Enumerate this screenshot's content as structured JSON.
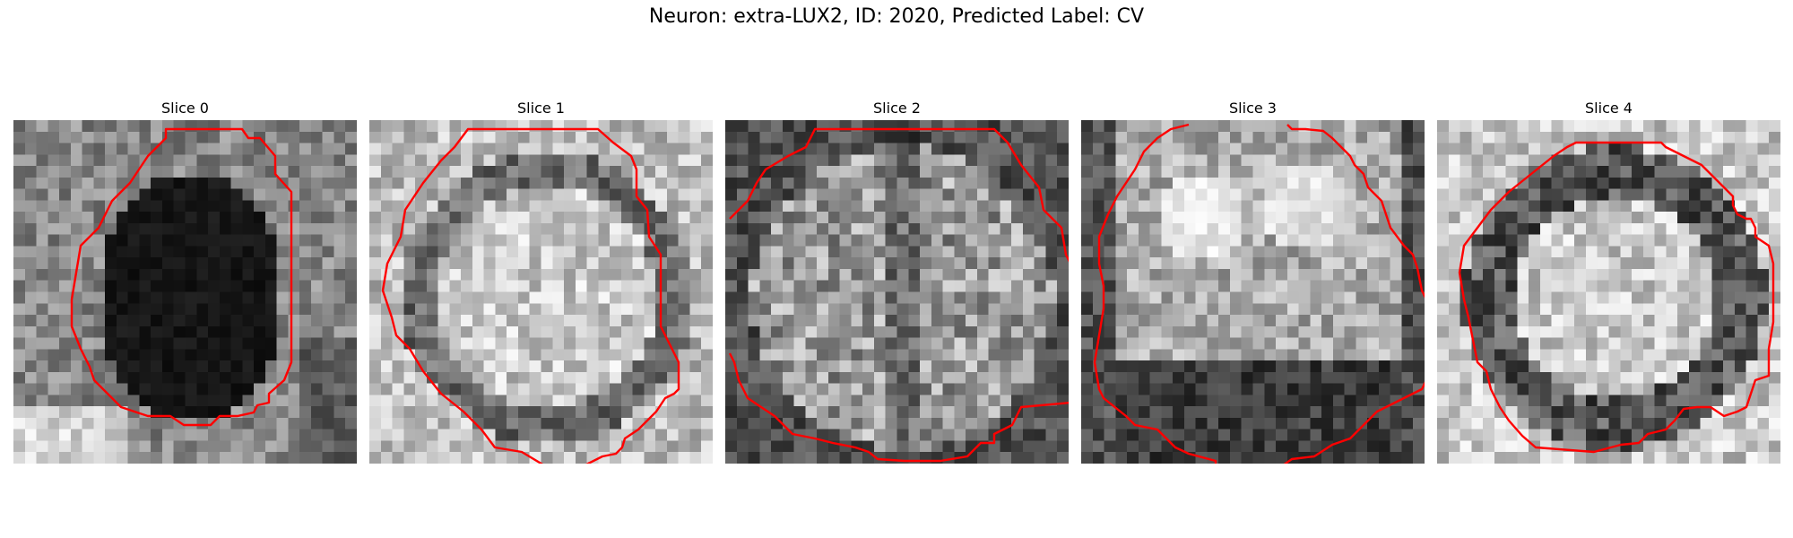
{
  "figure": {
    "title": "Neuron: extra-LUX2, ID: 2020, Predicted Label: CV",
    "contour_color": "#ff0000"
  },
  "slices": [
    {
      "label": "Slice 0"
    },
    {
      "label": "Slice 1"
    },
    {
      "label": "Slice 2"
    },
    {
      "label": "Slice 3"
    },
    {
      "label": "Slice 4"
    }
  ]
}
